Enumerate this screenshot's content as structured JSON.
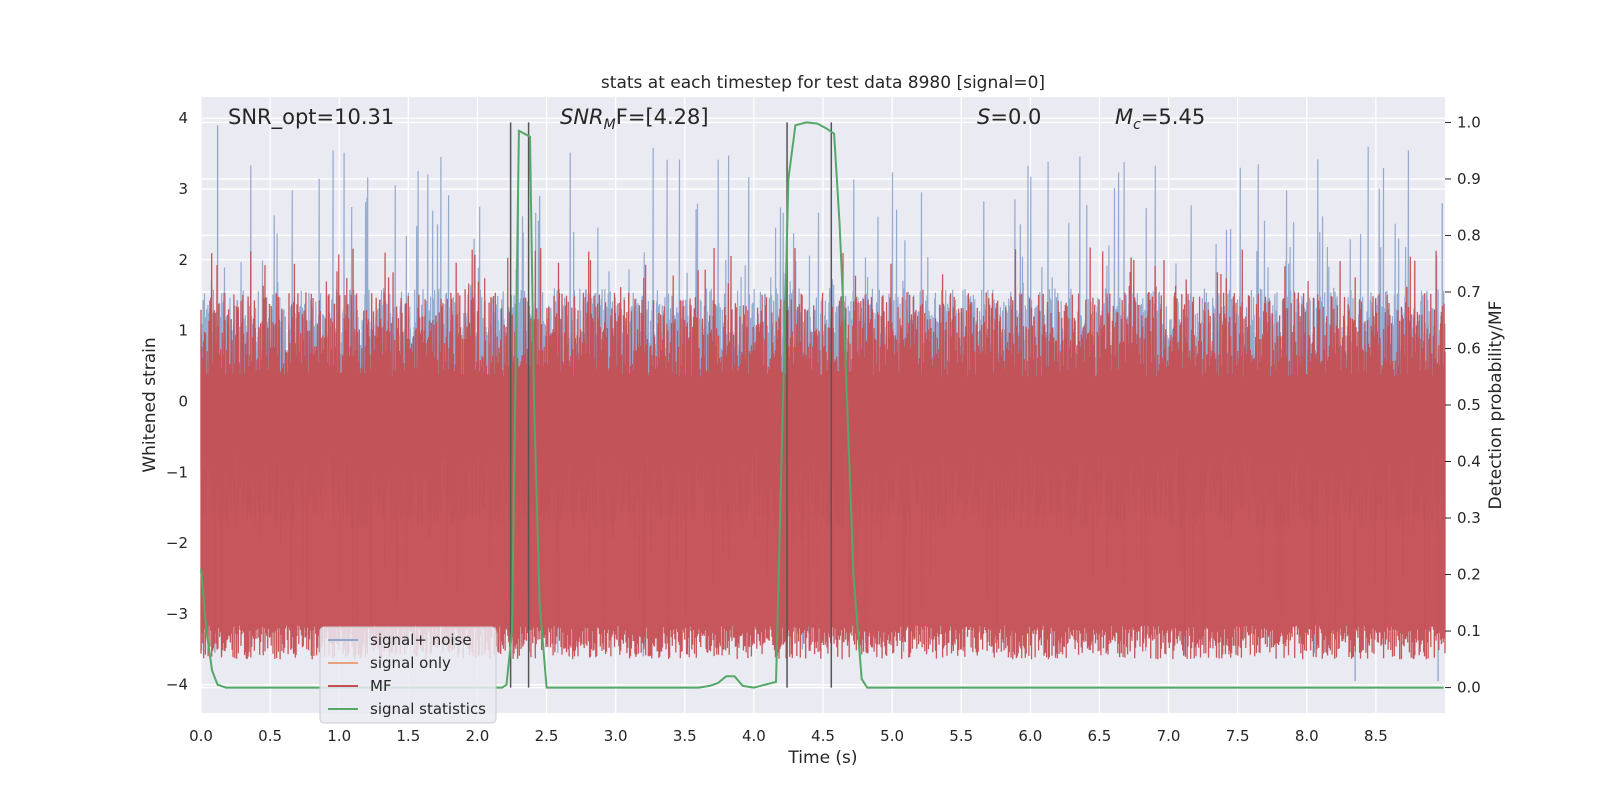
{
  "chart_data": {
    "type": "line",
    "title": "stats at each timestep for test data 8980 [signal=0]",
    "xlabel": "Time (s)",
    "ylabel": "Whitened strain",
    "y2label": "Detection probability/MF",
    "xlim": [
      0.0,
      9.0
    ],
    "ylim": [
      -4.4,
      4.3
    ],
    "y2lim": [
      -0.045,
      1.045
    ],
    "xticks": [
      0.0,
      0.5,
      1.0,
      1.5,
      2.0,
      2.5,
      3.0,
      3.5,
      4.0,
      4.5,
      5.0,
      5.5,
      6.0,
      6.5,
      7.0,
      7.5,
      8.0,
      8.5
    ],
    "xtick_labels": [
      "0.0",
      "0.5",
      "1.0",
      "1.5",
      "2.0",
      "2.5",
      "3.0",
      "3.5",
      "4.0",
      "4.5",
      "5.0",
      "5.5",
      "6.0",
      "6.5",
      "7.0",
      "7.5",
      "8.0",
      "8.5"
    ],
    "yticks": [
      -4,
      -3,
      -2,
      -1,
      0,
      1,
      2,
      3,
      4
    ],
    "ytick_labels": [
      "−4",
      "−3",
      "−2",
      "−1",
      "0",
      "1",
      "2",
      "3",
      "4"
    ],
    "y2ticks": [
      0.0,
      0.1,
      0.2,
      0.3,
      0.4,
      0.5,
      0.6,
      0.7,
      0.8,
      0.9,
      1.0
    ],
    "y2tick_labels": [
      "0.0",
      "0.1",
      "0.2",
      "0.3",
      "0.4",
      "0.5",
      "0.6",
      "0.7",
      "0.8",
      "0.9",
      "1.0"
    ],
    "grid": true,
    "legend_position": "lower-left",
    "annotations": {
      "snr_opt": "SNR_opt=10.31",
      "snr_mf_main": "SNR",
      "snr_mf_sub": "M",
      "snr_mf_rest": "F=[4.28]",
      "s_main": "S",
      "s_rest": "=0.0",
      "mc_main": "M",
      "mc_sub": "c",
      "mc_rest": "=5.45"
    },
    "series": [
      {
        "name": "signal+ noise",
        "color": "#8fa6cc",
        "approx_envelope": {
          "upper_typical": 1.6,
          "upper_peak": 3.9,
          "lower_typical": -1.8,
          "lower_peak": -4.0
        },
        "notable_peaks": [
          [
            0.12,
            3.9
          ],
          [
            0.1,
            -3.55
          ],
          [
            2.45,
            2.9
          ],
          [
            8.98,
            2.8
          ],
          [
            8.35,
            -3.95
          ],
          [
            8.95,
            -3.95
          ],
          [
            3.2,
            -3.6
          ],
          [
            4.35,
            -3.5
          ]
        ]
      },
      {
        "name": "signal only",
        "color": "#e8a07e",
        "values": []
      },
      {
        "name": "MF",
        "color": "#c44e52",
        "approx_band": {
          "min": 0.05,
          "max": 1.0,
          "typical_max": 0.7,
          "axis": "y2"
        }
      },
      {
        "name": "signal statistics",
        "color": "#55a868",
        "axis": "y2",
        "x": [
          0.0,
          0.04,
          0.08,
          0.12,
          0.18,
          0.25,
          2.1,
          2.18,
          2.21,
          2.25,
          2.3,
          2.34,
          2.38,
          2.41,
          2.45,
          2.5,
          2.8,
          3.6,
          3.68,
          3.74,
          3.8,
          3.86,
          3.92,
          4.0,
          4.16,
          4.2,
          4.25,
          4.3,
          4.38,
          4.46,
          4.52,
          4.58,
          4.62,
          4.66,
          4.72,
          4.78,
          4.82,
          8.99
        ],
        "y": [
          0.21,
          0.1,
          0.03,
          0.005,
          0.0,
          0.0,
          0.0,
          0.0,
          0.005,
          0.1,
          0.985,
          0.98,
          0.975,
          0.5,
          0.15,
          0.0,
          0.0,
          0.0,
          0.003,
          0.008,
          0.02,
          0.02,
          0.003,
          0.0,
          0.01,
          0.4,
          0.9,
          0.995,
          1.0,
          0.998,
          0.99,
          0.98,
          0.82,
          0.6,
          0.2,
          0.015,
          0.0,
          0.0
        ]
      }
    ],
    "vertical_markers": [
      2.24,
      2.37,
      4.24,
      4.56
    ],
    "vertical_marker_color": "#555555"
  }
}
